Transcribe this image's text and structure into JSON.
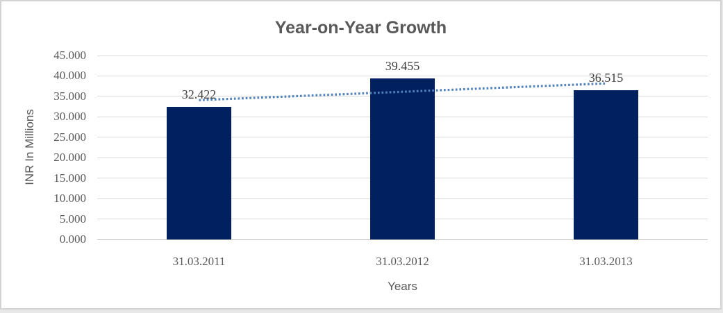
{
  "chart_data": {
    "type": "bar",
    "title": "Year-on-Year Growth",
    "categories": [
      "31.03.2011",
      "31.03.2012",
      "31.03.2013"
    ],
    "values": [
      32.422,
      39.455,
      36.515
    ],
    "data_labels": [
      "32.422",
      "39.455",
      "36.515"
    ],
    "xlabel": "Years",
    "ylabel": "INR In Millions",
    "ylim": [
      0,
      45
    ],
    "ytick_step": 5,
    "ytick_labels": [
      "45.000",
      "40.000",
      "35.000",
      "30.000",
      "25.000",
      "20.000",
      "15.000",
      "10.000",
      "5.000",
      "0.000"
    ],
    "grid": true,
    "legend_position": "none",
    "trendline": {
      "kind": "linear",
      "style": "dotted",
      "color": "#4f81bd"
    },
    "colors": {
      "bar": "#002060",
      "gridline": "#d9d9d9",
      "axis_line": "#bfbfbf",
      "text": "#595959",
      "data_label": "#3f3f3f",
      "frame_border": "#d3d3d3"
    }
  }
}
